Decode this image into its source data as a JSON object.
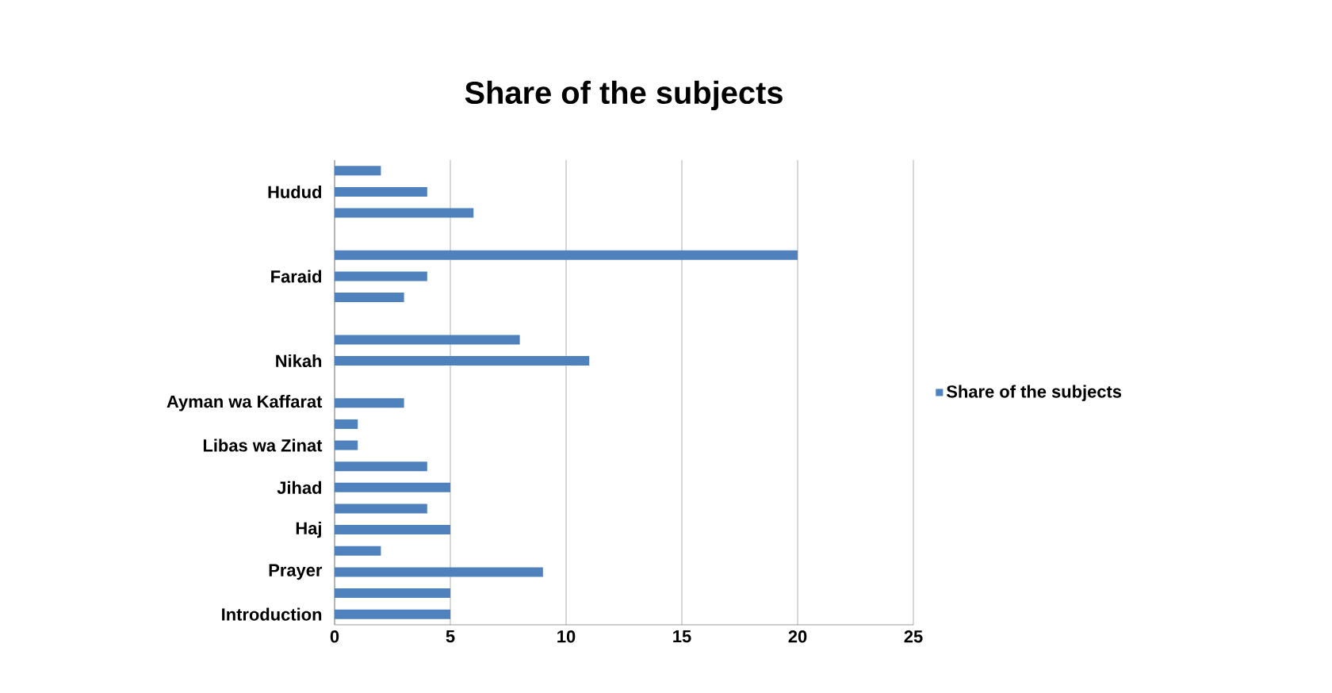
{
  "chart_data": {
    "type": "bar",
    "orientation": "horizontal",
    "title": "Share of the subjects",
    "categories": [
      null,
      "Hudud",
      null,
      null,
      null,
      "Faraid",
      null,
      null,
      null,
      "Nikah",
      null,
      "Ayman wa Kaffarat",
      null,
      "Libas wa Zinat",
      null,
      "Jihad",
      null,
      "Haj",
      null,
      "Prayer",
      null,
      "Introduction"
    ],
    "series": [
      {
        "name": "Share of the subjects",
        "color": "#4f81bd",
        "values": [
          2,
          4,
          6,
          null,
          20,
          4,
          3,
          null,
          8,
          11,
          null,
          3,
          1,
          1,
          4,
          5,
          4,
          5,
          2,
          9,
          5,
          5
        ]
      }
    ],
    "xlim": [
      0,
      25
    ],
    "xticks": [
      0,
      5,
      10,
      15,
      20,
      25
    ],
    "grid": "x",
    "legend": "right"
  }
}
